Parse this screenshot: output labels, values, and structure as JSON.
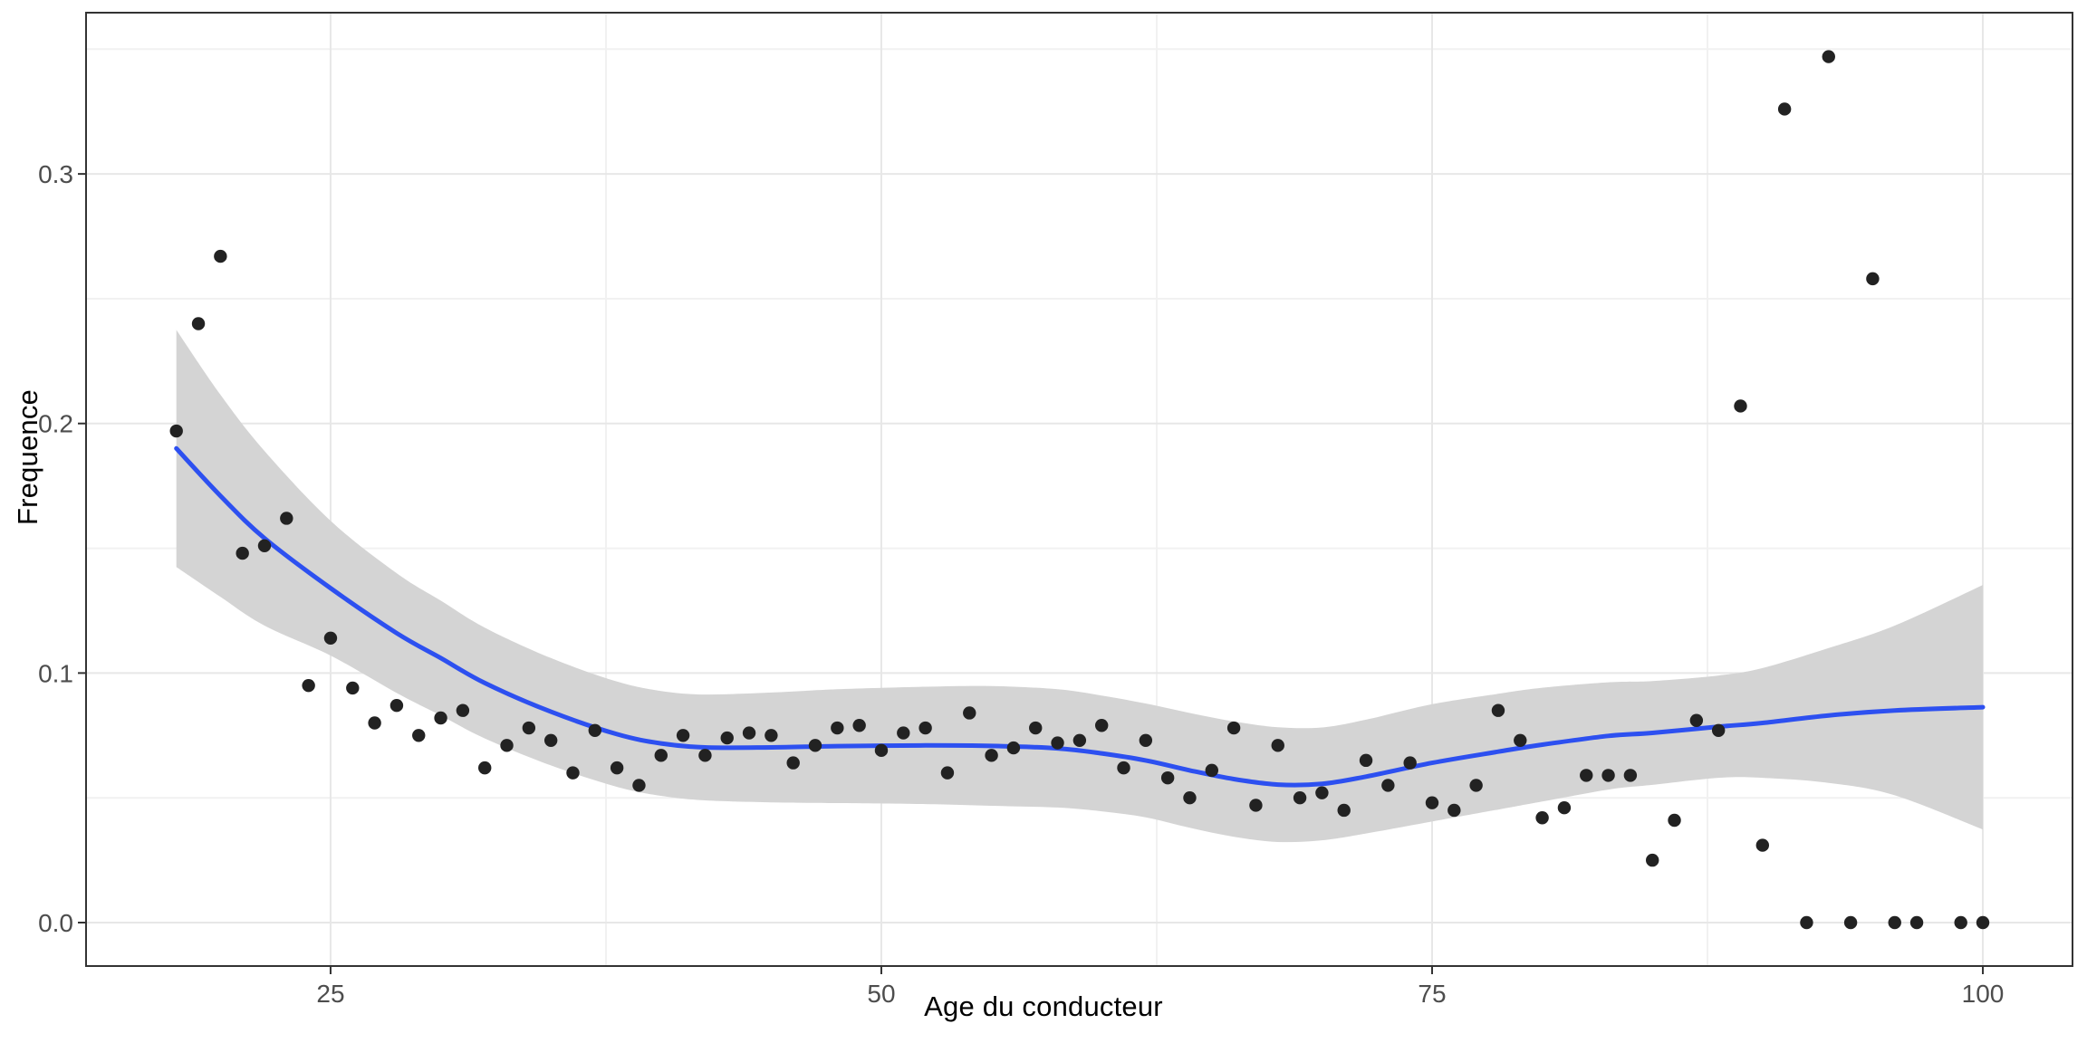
{
  "chart_data": {
    "type": "scatter",
    "title": "",
    "xlabel": "Age du conducteur",
    "ylabel": "Frequence",
    "legend": "none",
    "grid": "major+minor",
    "xlim": [
      13.9,
      104.07
    ],
    "ylim": [
      -0.01741,
      0.36462
    ],
    "x_ticks": [
      25,
      50,
      75,
      100
    ],
    "x_tick_labels": [
      "25",
      "50",
      "75",
      "100"
    ],
    "x_minor_ticks": [
      37.5,
      62.5,
      87.5
    ],
    "y_ticks": [
      0.0,
      0.1,
      0.2,
      0.3
    ],
    "y_tick_labels": [
      "0.0",
      "0.1",
      "0.2",
      "0.3"
    ],
    "y_minor_ticks": [
      0.05,
      0.15,
      0.25,
      0.35
    ],
    "points": {
      "x": [
        18,
        19,
        20,
        21,
        22,
        23,
        24,
        25,
        26,
        27,
        28,
        29,
        30,
        31,
        32,
        33,
        34,
        35,
        36,
        37,
        38,
        39,
        40,
        41,
        42,
        43,
        44,
        45,
        46,
        47,
        48,
        49,
        50,
        51,
        52,
        53,
        54,
        55,
        56,
        57,
        58,
        59,
        60,
        61,
        62,
        63,
        64,
        65,
        66,
        67,
        68,
        69,
        70,
        71,
        72,
        73,
        74,
        75,
        76,
        77,
        78,
        79,
        80,
        81,
        82,
        83,
        84,
        85,
        86,
        87,
        88,
        89,
        90,
        91,
        92,
        93,
        94,
        95,
        96,
        97,
        99,
        100
      ],
      "y": [
        0.197,
        0.24,
        0.267,
        0.148,
        0.151,
        0.162,
        0.095,
        0.114,
        0.094,
        0.08,
        0.087,
        0.075,
        0.082,
        0.085,
        0.062,
        0.071,
        0.078,
        0.073,
        0.06,
        0.077,
        0.062,
        0.055,
        0.067,
        0.075,
        0.067,
        0.074,
        0.076,
        0.075,
        0.064,
        0.071,
        0.078,
        0.079,
        0.069,
        0.076,
        0.078,
        0.06,
        0.084,
        0.067,
        0.07,
        0.078,
        0.072,
        0.073,
        0.079,
        0.062,
        0.073,
        0.058,
        0.05,
        0.061,
        0.078,
        0.047,
        0.071,
        0.05,
        0.052,
        0.045,
        0.065,
        0.055,
        0.064,
        0.048,
        0.045,
        0.055,
        0.085,
        0.073,
        0.042,
        0.046,
        0.059,
        0.059,
        0.059,
        0.025,
        0.041,
        0.081,
        0.077,
        0.207,
        0.031,
        0.326,
        0.0,
        0.347,
        0.0,
        0.258,
        0.0,
        0.0,
        0.0,
        0.0
      ]
    },
    "smooth": {
      "x": [
        18,
        20,
        22,
        25,
        28,
        30,
        32,
        35,
        38,
        40,
        42,
        45,
        48,
        52,
        55,
        58,
        60,
        62,
        64,
        66,
        68,
        70,
        72,
        75,
        78,
        80,
        83,
        85,
        88,
        90,
        93,
        96,
        100
      ],
      "y": [
        0.19,
        0.171,
        0.154,
        0.134,
        0.116,
        0.106,
        0.096,
        0.0845,
        0.0755,
        0.0718,
        0.0702,
        0.0702,
        0.0707,
        0.071,
        0.0708,
        0.0698,
        0.0678,
        0.065,
        0.061,
        0.0575,
        0.0553,
        0.0556,
        0.0585,
        0.064,
        0.0685,
        0.0713,
        0.0748,
        0.076,
        0.0785,
        0.08,
        0.083,
        0.085,
        0.0863
      ],
      "margin": [
        0.0475,
        0.0405,
        0.035,
        0.027,
        0.024,
        0.023,
        0.0222,
        0.0215,
        0.0211,
        0.021,
        0.0212,
        0.022,
        0.0228,
        0.0235,
        0.024,
        0.0237,
        0.0232,
        0.0228,
        0.023,
        0.0231,
        0.023,
        0.0226,
        0.0228,
        0.0235,
        0.0232,
        0.0228,
        0.0215,
        0.0208,
        0.0205,
        0.022,
        0.027,
        0.034,
        0.049
      ]
    },
    "colors": {
      "point": "#222222",
      "smooth_line": "#2D50F0",
      "band": "#d4d4d4",
      "grid_major": "#e7e7e7",
      "grid_minor": "#f1f1f1",
      "panel_border": "#333333",
      "tick_mark": "#333333",
      "tick_label": "#4d4d4d",
      "axis_title": "#000000",
      "background": "#ffffff"
    }
  }
}
